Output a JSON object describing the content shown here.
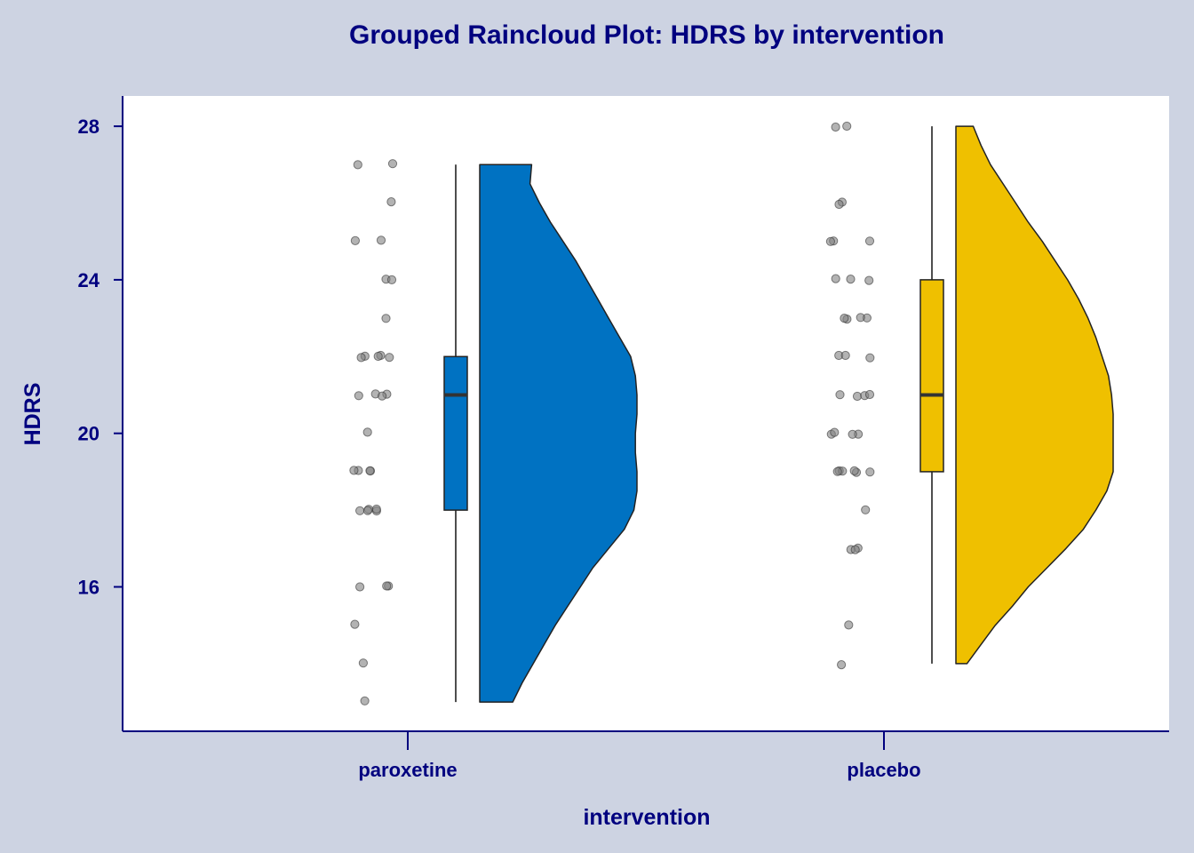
{
  "chart_data": {
    "type": "raincloud",
    "title": "Grouped Raincloud Plot: HDRS by intervention",
    "xlabel": "intervention",
    "ylabel": "HDRS",
    "ylim": [
      12.4,
      28.8
    ],
    "yticks": [
      16,
      20,
      24,
      28
    ],
    "grid": false,
    "categories": [
      "paroxetine",
      "placebo"
    ],
    "colors": {
      "paroxetine": "#0072C2",
      "placebo": "#EFC000",
      "points": "#808080",
      "axis": "#00007F",
      "background": "#CDD3E2",
      "panel": "#FFFFFF"
    },
    "groups": [
      {
        "name": "paroxetine",
        "box": {
          "min": 13,
          "q1": 18,
          "median": 21,
          "q3": 22,
          "max": 27
        },
        "density": {
          "y": [
            13,
            13.5,
            14,
            14.5,
            15,
            15.5,
            16,
            16.5,
            17,
            17.5,
            18,
            18.5,
            19,
            19.5,
            20,
            20.5,
            21,
            21.5,
            22,
            22.5,
            23,
            23.5,
            24,
            24.5,
            25,
            25.5,
            26,
            26.5,
            27
          ],
          "d": [
            0.21,
            0.27,
            0.34,
            0.41,
            0.48,
            0.56,
            0.64,
            0.72,
            0.82,
            0.92,
            0.98,
            1.0,
            1.0,
            0.99,
            0.99,
            1.0,
            1.0,
            0.99,
            0.96,
            0.89,
            0.82,
            0.75,
            0.68,
            0.61,
            0.53,
            0.45,
            0.38,
            0.32,
            0.33
          ]
        },
        "points": [
          13,
          14,
          15,
          16,
          16,
          16,
          18,
          18,
          18,
          18,
          18,
          19,
          19,
          19,
          19,
          20,
          21,
          21,
          21,
          21,
          22,
          22,
          22,
          22,
          22,
          23,
          24,
          24,
          25,
          25,
          26,
          27,
          27
        ]
      },
      {
        "name": "placebo",
        "box": {
          "min": 14,
          "q1": 19,
          "median": 21,
          "q3": 24,
          "max": 28
        },
        "density": {
          "y": [
            14,
            14.5,
            15,
            15.5,
            16,
            16.5,
            17,
            17.5,
            18,
            18.5,
            19,
            19.5,
            20,
            20.5,
            21,
            21.5,
            22,
            22.5,
            23,
            23.5,
            24,
            24.5,
            25,
            25.5,
            26,
            26.5,
            27,
            27.5,
            28
          ],
          "d": [
            0.07,
            0.16,
            0.25,
            0.36,
            0.46,
            0.58,
            0.7,
            0.81,
            0.89,
            0.96,
            1.0,
            1.0,
            1.0,
            1.0,
            0.99,
            0.97,
            0.93,
            0.89,
            0.84,
            0.78,
            0.71,
            0.63,
            0.55,
            0.46,
            0.38,
            0.3,
            0.22,
            0.16,
            0.11
          ]
        },
        "points": [
          14,
          15,
          17,
          17,
          17,
          18,
          19,
          19,
          19,
          19,
          19,
          19,
          20,
          20,
          20,
          20,
          21,
          21,
          21,
          21,
          22,
          22,
          22,
          23,
          23,
          23,
          23,
          24,
          24,
          24,
          25,
          25,
          25,
          26,
          26,
          28,
          28
        ]
      }
    ]
  }
}
